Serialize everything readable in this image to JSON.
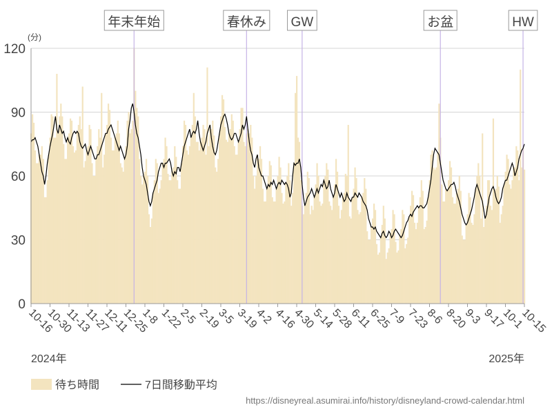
{
  "chart_data": {
    "type": "bar-line",
    "y_unit": "(分)",
    "annotations": [
      "年末年始",
      "春休み",
      "GW",
      "お盆",
      "HW"
    ],
    "year_labels": [
      "2024年",
      "2025年"
    ],
    "source": "https://disneyreal.asumirai.info/history/disneyland-crowd-calendar.html",
    "ylim": [
      0,
      120
    ],
    "yticks": [
      0,
      30,
      60,
      90,
      120
    ],
    "grid": true,
    "categories": [
      "10-16",
      null,
      null,
      null,
      null,
      null,
      null,
      null,
      null,
      null,
      null,
      null,
      null,
      null,
      "10-30",
      null,
      null,
      null,
      null,
      null,
      null,
      null,
      null,
      null,
      null,
      null,
      null,
      null,
      "11-13",
      null,
      null,
      null,
      null,
      null,
      null,
      null,
      null,
      null,
      null,
      null,
      null,
      null,
      "11-27",
      null,
      null,
      null,
      null,
      null,
      null,
      null,
      null,
      null,
      null,
      null,
      null,
      null,
      "12-11",
      null,
      null,
      null,
      null,
      null,
      null,
      null,
      null,
      null,
      null,
      null,
      null,
      null,
      "12-25",
      null,
      null,
      null,
      null,
      null,
      null,
      null,
      null,
      null,
      null,
      null,
      null,
      null,
      "1-8",
      null,
      null,
      null,
      null,
      null,
      null,
      null,
      null,
      null,
      null,
      null,
      null,
      null,
      "1-22",
      null,
      null,
      null,
      null,
      null,
      null,
      null,
      null,
      null,
      null,
      null,
      null,
      null,
      "2-5",
      null,
      null,
      null,
      null,
      null,
      null,
      null,
      null,
      null,
      null,
      null,
      null,
      null,
      "2-19",
      null,
      null,
      null,
      null,
      null,
      null,
      null,
      null,
      null,
      null,
      null,
      null,
      null,
      "3-5",
      null,
      null,
      null,
      null,
      null,
      null,
      null,
      null,
      null,
      null,
      null,
      null,
      null,
      "3-19",
      null,
      null,
      null,
      null,
      null,
      null,
      null,
      null,
      null,
      null,
      null,
      null,
      null,
      "4-2",
      null,
      null,
      null,
      null,
      null,
      null,
      null,
      null,
      null,
      null,
      null,
      null,
      null,
      "4-16",
      null,
      null,
      null,
      null,
      null,
      null,
      null,
      null,
      null,
      null,
      null,
      null,
      null,
      "4-30",
      null,
      null,
      null,
      null,
      null,
      null,
      null,
      null,
      null,
      null,
      null,
      null,
      null,
      "5-14",
      null,
      null,
      null,
      null,
      null,
      null,
      null,
      null,
      null,
      null,
      null,
      null,
      null,
      "5-28",
      null,
      null,
      null,
      null,
      null,
      null,
      null,
      null,
      null,
      null,
      null,
      null,
      null,
      "6-11",
      null,
      null,
      null,
      null,
      null,
      null,
      null,
      null,
      null,
      null,
      null,
      null,
      null,
      "6-25",
      null,
      null,
      null,
      null,
      null,
      null,
      null,
      null,
      null,
      null,
      null,
      null,
      null,
      "7-9",
      null,
      null,
      null,
      null,
      null,
      null,
      null,
      null,
      null,
      null,
      null,
      null,
      null,
      "7-23",
      null,
      null,
      null,
      null,
      null,
      null,
      null,
      null,
      null,
      null,
      null,
      null,
      null,
      "8-6",
      null,
      null,
      null,
      null,
      null,
      null,
      null,
      null,
      null,
      null,
      null,
      null,
      null,
      "8-20",
      null,
      null,
      null,
      null,
      null,
      null,
      null,
      null,
      null,
      null,
      null,
      null,
      null,
      "9-3",
      null,
      null,
      null,
      null,
      null,
      null,
      null,
      null,
      null,
      null,
      null,
      null,
      null,
      "9-17",
      null,
      null,
      null,
      null,
      null,
      null,
      null,
      null,
      null,
      null,
      null,
      null,
      null,
      "10-1",
      null,
      null,
      null,
      null,
      null,
      null,
      null,
      null,
      null,
      null,
      null,
      null,
      null,
      "10-15"
    ],
    "series": [
      {
        "name": "待ち時間",
        "color": "#f3e4bf",
        "values": [
          80,
          89,
          85,
          72,
          66,
          66,
          70,
          70,
          74,
          68,
          50,
          50,
          58,
          70,
          78,
          89,
          88,
          78,
          78,
          108,
          80,
          88,
          94,
          88,
          75,
          68,
          68,
          78,
          80,
          87,
          86,
          74,
          71,
          72,
          81,
          84,
          88,
          82,
          102,
          64,
          67,
          72,
          74,
          84,
          82,
          66,
          60,
          60,
          68,
          74,
          82,
          78,
          99,
          64,
          70,
          80,
          84,
          94,
          91,
          78,
          72,
          72,
          78,
          80,
          86,
          80,
          66,
          64,
          62,
          68,
          74,
          86,
          90,
          80,
          82,
          86,
          120,
          100,
          92,
          88,
          68,
          60,
          56,
          60,
          62,
          68,
          60,
          42,
          36,
          40,
          52,
          58,
          68,
          66,
          52,
          54,
          58,
          66,
          68,
          78,
          74,
          61,
          58,
          58,
          62,
          64,
          74,
          69,
          58,
          54,
          54,
          66,
          74,
          86,
          84,
          72,
          70,
          74,
          78,
          84,
          99,
          88,
          76,
          76,
          72,
          76,
          78,
          84,
          82,
          70,
          111,
          74,
          84,
          82,
          86,
          79,
          64,
          62,
          68,
          80,
          88,
          98,
          96,
          83,
          77,
          76,
          80,
          82,
          89,
          86,
          74,
          70,
          70,
          76,
          82,
          92,
          92,
          76,
          74,
          80,
          82,
          80,
          84,
          78,
          60,
          54,
          60,
          70,
          68,
          74,
          68,
          54,
          48,
          48,
          54,
          60,
          67,
          65,
          50,
          48,
          48,
          54,
          60,
          69,
          64,
          52,
          47,
          48,
          57,
          60,
          66,
          58,
          46,
          52,
          66,
          99,
          107,
          78,
          76,
          58,
          46,
          42,
          46,
          52,
          62,
          59,
          42,
          46,
          44,
          50,
          56,
          66,
          60,
          48,
          46,
          47,
          58,
          60,
          66,
          63,
          48,
          46,
          44,
          50,
          56,
          68,
          62,
          46,
          40,
          44,
          50,
          52,
          61,
          60,
          84,
          41,
          40,
          50,
          54,
          64,
          59,
          44,
          42,
          43,
          50,
          52,
          59,
          54,
          34,
          30,
          30,
          36,
          40,
          47,
          44,
          28,
          23,
          24,
          31,
          37,
          46,
          40,
          21,
          24,
          26,
          33,
          35,
          44,
          42,
          29,
          24,
          25,
          32,
          35,
          44,
          42,
          26,
          28,
          31,
          41,
          46,
          53,
          51,
          38,
          35,
          38,
          45,
          50,
          58,
          53,
          35,
          36,
          39,
          50,
          58,
          70,
          72,
          64,
          63,
          64,
          71,
          94,
          78,
          56,
          48,
          48,
          54,
          53,
          58,
          67,
          64,
          50,
          47,
          47,
          52,
          54,
          60,
          53,
          32,
          30,
          30,
          37,
          42,
          52,
          50,
          38,
          37,
          42,
          54,
          60,
          66,
          60,
          40,
          80,
          36,
          40,
          46,
          58,
          58,
          46,
          44,
          87,
          53,
          54,
          60,
          55,
          38,
          42,
          46,
          56,
          62,
          70,
          68,
          56,
          54,
          58,
          64,
          64,
          74,
          72,
          58,
          110,
          64,
          73,
          63
        ]
      },
      {
        "name": "7日間移動平均",
        "color": "#000000",
        "values": [
          76,
          77,
          77,
          78,
          76,
          74,
          70,
          66,
          62,
          60,
          56,
          60,
          66,
          70,
          74,
          77,
          80,
          84,
          88,
          82,
          80,
          84,
          82,
          80,
          81,
          78,
          76,
          78,
          76,
          75,
          78,
          80,
          81,
          80,
          81,
          80,
          76,
          74,
          73,
          74,
          75,
          72,
          70,
          72,
          74,
          72,
          70,
          68,
          68,
          70,
          70,
          72,
          74,
          76,
          78,
          80,
          80,
          82,
          83,
          84,
          82,
          80,
          78,
          76,
          74,
          72,
          74,
          72,
          70,
          68,
          70,
          74,
          82,
          86,
          92,
          94,
          90,
          84,
          80,
          78,
          74,
          70,
          64,
          60,
          58,
          56,
          52,
          48,
          46,
          48,
          52,
          54,
          56,
          58,
          62,
          64,
          66,
          66,
          64,
          66,
          66,
          67,
          68,
          66,
          62,
          60,
          62,
          61,
          64,
          64,
          62,
          66,
          70,
          74,
          76,
          78,
          80,
          82,
          78,
          80,
          81,
          80,
          82,
          86,
          80,
          76,
          74,
          72,
          74,
          76,
          80,
          82,
          84,
          78,
          74,
          71,
          70,
          72,
          76,
          80,
          84,
          86,
          88,
          89,
          87,
          84,
          80,
          78,
          77,
          78,
          80,
          80,
          78,
          76,
          78,
          80,
          84,
          82,
          84,
          88,
          82,
          76,
          72,
          70,
          66,
          64,
          68,
          70,
          64,
          62,
          60,
          60,
          58,
          56,
          54,
          56,
          55,
          57,
          56,
          58,
          56,
          54,
          56,
          57,
          56,
          58,
          57,
          56,
          57,
          56,
          54,
          50,
          52,
          60,
          66,
          65,
          66,
          66,
          68,
          64,
          56,
          50,
          46,
          48,
          50,
          51,
          52,
          54,
          52,
          50,
          52,
          54,
          52,
          54,
          56,
          55,
          58,
          56,
          54,
          55,
          58,
          54,
          52,
          50,
          52,
          56,
          54,
          52,
          50,
          52,
          50,
          48,
          49,
          52,
          50,
          49,
          48,
          50,
          50,
          52,
          51,
          50,
          52,
          51,
          50,
          48,
          47,
          46,
          44,
          40,
          38,
          36,
          36,
          35,
          36,
          34,
          33,
          32,
          31,
          33,
          34,
          32,
          31,
          32,
          34,
          33,
          31,
          32,
          34,
          35,
          34,
          33,
          32,
          31,
          32,
          34,
          36,
          38,
          39,
          41,
          42,
          41,
          43,
          44,
          45,
          46,
          45,
          46,
          46,
          45,
          45,
          46,
          47,
          50,
          54,
          58,
          64,
          70,
          73,
          72,
          71,
          70,
          66,
          62,
          58,
          56,
          54,
          53,
          54,
          55,
          56,
          56,
          57,
          55,
          52,
          50,
          48,
          45,
          42,
          40,
          38,
          37,
          38,
          40,
          42,
          44,
          47,
          50,
          54,
          56,
          54,
          52,
          50,
          48,
          44,
          40,
          42,
          46,
          50,
          52,
          54,
          55,
          53,
          50,
          48,
          47,
          48,
          50,
          54,
          56,
          58,
          58,
          60,
          62,
          64,
          66,
          64,
          60,
          62,
          64,
          68,
          70,
          72,
          73,
          75
        ]
      }
    ]
  }
}
